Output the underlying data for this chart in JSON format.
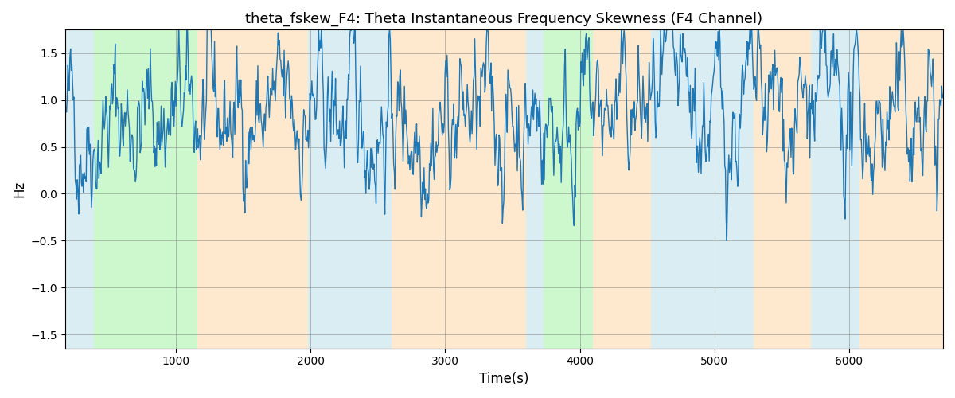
{
  "title": "theta_fskew_F4: Theta Instantaneous Frequency Skewness (F4 Channel)",
  "xlabel": "Time(s)",
  "ylabel": "Hz",
  "xlim": [
    175,
    6700
  ],
  "ylim": [
    -1.65,
    1.75
  ],
  "line_color": "#1f77b4",
  "line_width": 1.0,
  "bg_bands": [
    {
      "xmin": 175,
      "xmax": 390,
      "color": "#add8e6",
      "alpha": 0.45
    },
    {
      "xmin": 390,
      "xmax": 1160,
      "color": "#90ee90",
      "alpha": 0.45
    },
    {
      "xmin": 1160,
      "xmax": 1980,
      "color": "#ffd59e",
      "alpha": 0.5
    },
    {
      "xmin": 1980,
      "xmax": 2600,
      "color": "#add8e6",
      "alpha": 0.45
    },
    {
      "xmin": 2600,
      "xmax": 3600,
      "color": "#ffd59e",
      "alpha": 0.5
    },
    {
      "xmin": 3600,
      "xmax": 3730,
      "color": "#add8e6",
      "alpha": 0.45
    },
    {
      "xmin": 3730,
      "xmax": 4100,
      "color": "#90ee90",
      "alpha": 0.45
    },
    {
      "xmin": 4100,
      "xmax": 4530,
      "color": "#ffd59e",
      "alpha": 0.5
    },
    {
      "xmin": 4530,
      "xmax": 5290,
      "color": "#add8e6",
      "alpha": 0.45
    },
    {
      "xmin": 5290,
      "xmax": 5720,
      "color": "#ffd59e",
      "alpha": 0.5
    },
    {
      "xmin": 5720,
      "xmax": 6080,
      "color": "#add8e6",
      "alpha": 0.45
    },
    {
      "xmin": 6080,
      "xmax": 6700,
      "color": "#ffd59e",
      "alpha": 0.5
    }
  ],
  "seed": 42,
  "n_points": 1300,
  "grid": true,
  "title_fontsize": 13,
  "xticks": [
    1000,
    2000,
    3000,
    4000,
    5000,
    6000
  ],
  "yticks": [
    -1.5,
    -1.0,
    -0.5,
    0.0,
    0.5,
    1.0,
    1.5
  ]
}
